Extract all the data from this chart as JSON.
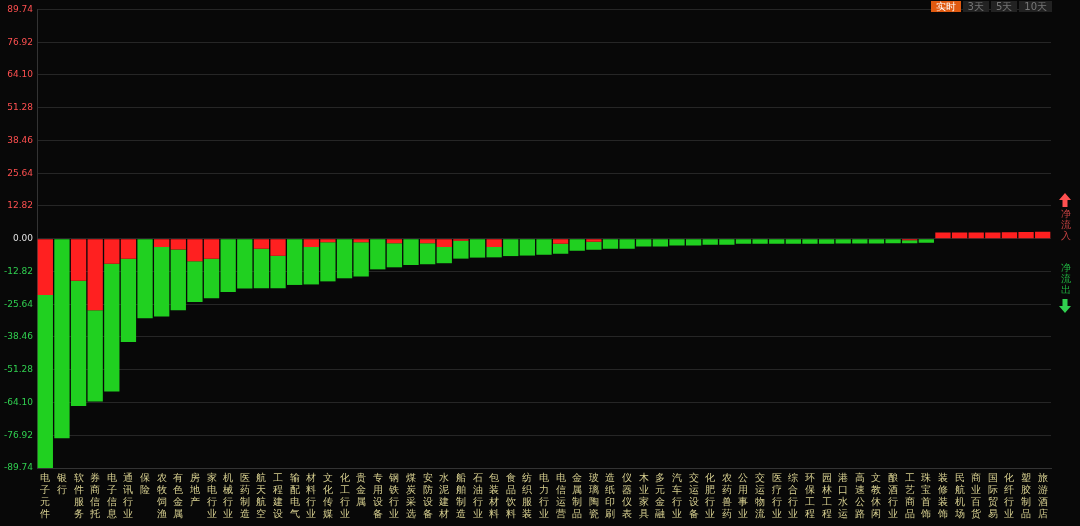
{
  "chart_data": {
    "type": "bar",
    "stacked": true,
    "legend": false,
    "grid": "y",
    "categories": [
      "电子元件",
      "银行",
      "软件服务",
      "券商信托",
      "电子信息",
      "通讯行业",
      "保险",
      "农牧饲渔",
      "有色金属",
      "房地产",
      "家电行业",
      "机械行业",
      "医药制造",
      "航天航空",
      "工程建设",
      "输配电气",
      "材料行业",
      "文化传媒",
      "化工行业",
      "贵金属",
      "专用设备",
      "钢铁行业",
      "煤炭采选",
      "安防设备",
      "水泥建材",
      "船舶制造",
      "石油行业",
      "包装材料",
      "食品饮料",
      "纺织服装",
      "电力行业",
      "电信运营",
      "金属制品",
      "玻璃陶瓷",
      "造纸印刷",
      "仪器仪表",
      "木业家具",
      "多元金融",
      "汽车行业",
      "交运设备",
      "化肥行业",
      "农药兽药",
      "公用事业",
      "交运物流",
      "医疗行业",
      "综合行业",
      "环保工程",
      "园林工程",
      "港口水运",
      "高速公路",
      "文教休闲",
      "酿酒行业",
      "工艺商品",
      "珠宝首饰",
      "装修装饰",
      "民航机场",
      "商业百货",
      "国际贸易",
      "化纤行业",
      "塑胶制品",
      "旅游酒店"
    ],
    "series": [
      {
        "color": "#ff2020",
        "values": [
          -22,
          null,
          -16.5,
          -28,
          -9.8,
          -7.8,
          null,
          -3.2,
          -4.2,
          -8.8,
          -7.8,
          null,
          null,
          -3.9,
          -6.7,
          null,
          -3.2,
          -1.4,
          null,
          -1.4,
          null,
          -1.8,
          null,
          -1.8,
          -3.2,
          -0.8,
          null,
          -3.2,
          null,
          null,
          null,
          -2,
          null,
          -1.2,
          null,
          null,
          null,
          null,
          null,
          null,
          null,
          null,
          null,
          null,
          null,
          null,
          null,
          null,
          null,
          null,
          null,
          null,
          -0.6,
          null,
          2.4,
          2.4,
          2.4,
          2.4,
          2.5,
          2.6,
          2.7
        ]
      },
      {
        "color": "#20d020",
        "values": [
          -67.7,
          -78.1,
          -49,
          -35.7,
          -50,
          -32.6,
          -31.1,
          -27.2,
          -23.8,
          -16,
          -15.5,
          -20.9,
          -19.5,
          -15.5,
          -12.7,
          -18.1,
          -14.7,
          -15.3,
          -15.5,
          -13.4,
          -12,
          -9.4,
          -10.3,
          -8.2,
          -6.4,
          -7,
          -7.4,
          -4.1,
          -6.8,
          -6.6,
          -6.3,
          -3.9,
          -4.7,
          -3.1,
          -3.9,
          -3.9,
          -3.1,
          -3.1,
          -2.7,
          -2.7,
          -2.4,
          -2.4,
          -2,
          -2,
          -2,
          -2,
          -2,
          -2,
          -1.9,
          -1.9,
          -1.9,
          -1.8,
          -1.2,
          -1.6,
          null,
          null,
          null,
          null,
          null,
          null,
          null
        ]
      }
    ],
    "ylim": [
      -89.74,
      89.74
    ],
    "yticks": [
      89.74,
      {
        "value": 76.92,
        "label": "76.92"
      },
      {
        "value": 64.1,
        "label": "64.10"
      },
      {
        "value": 51.28,
        "label": "51.28"
      },
      {
        "value": 38.46,
        "label": "38.46"
      },
      {
        "value": 25.64,
        "label": "25.64"
      },
      {
        "value": 12.82,
        "label": "12.82"
      },
      {
        "value": 0,
        "label": "0.00"
      },
      {
        "value": -12.82,
        "label": "-12.82"
      },
      {
        "value": -25.64,
        "label": "-25.64"
      },
      {
        "value": -38.46,
        "label": "-38.46"
      },
      {
        "value": -51.28,
        "label": "-51.28"
      },
      {
        "value": -64.1,
        "label": "-64.10"
      },
      {
        "value": -76.92,
        "label": "-76.92"
      },
      -89.74
    ],
    "annotations": [
      "实时",
      "3天",
      "5天",
      "10天",
      "净流入",
      "净流出"
    ]
  }
}
